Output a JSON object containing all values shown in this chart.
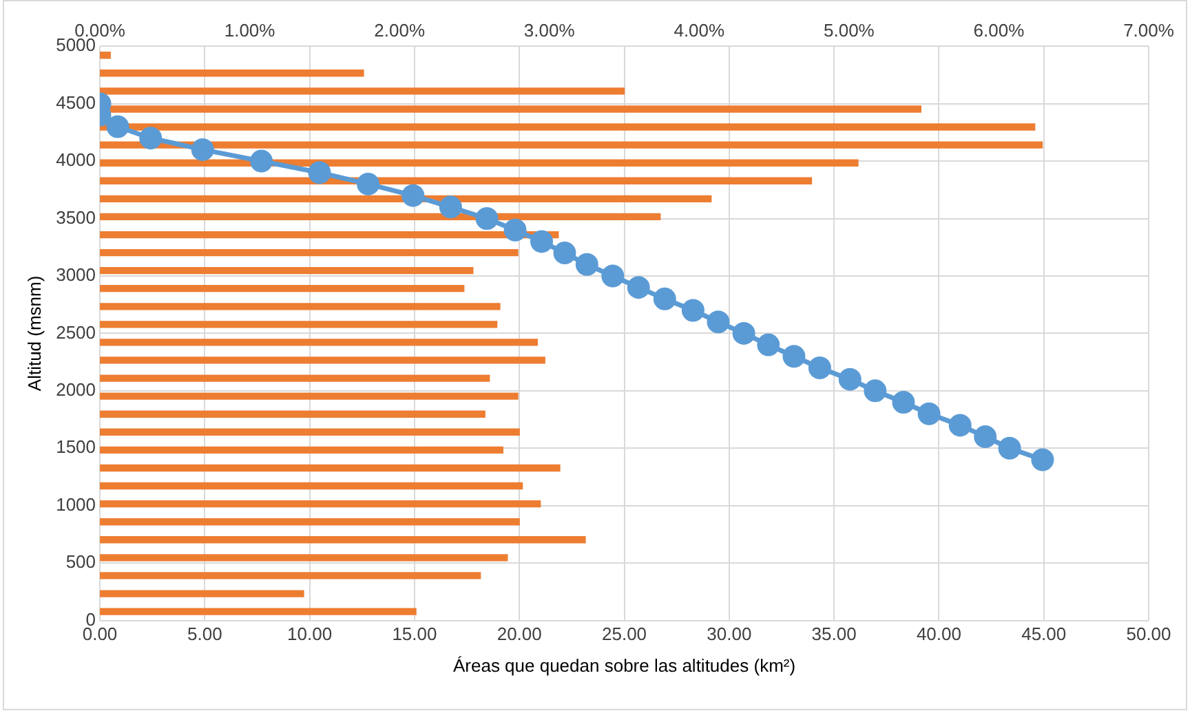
{
  "chart_data": {
    "type": "bar",
    "orientation": "horizontal",
    "xlabel": "Áreas que quedan sobre las altitudes (km²)",
    "ylabel": "Altitud (msnm)",
    "series": [
      {
        "axis": "x2",
        "color": "#ed7d31",
        "x": [
          4922,
          4766,
          4609,
          4453,
          4297,
          4141,
          3984,
          3828,
          3672,
          3516,
          3359,
          3203,
          3047,
          2891,
          2734,
          2578,
          2422,
          2266,
          2109,
          1953,
          1797,
          1641,
          1484,
          1328,
          1172,
          1016,
          859,
          703,
          547,
          391,
          234,
          78
        ],
        "values": [
          0.07,
          1.76,
          3.5,
          5.48,
          6.24,
          6.29,
          5.06,
          4.75,
          4.08,
          3.74,
          3.06,
          2.79,
          2.49,
          2.43,
          2.67,
          2.65,
          2.92,
          2.97,
          2.6,
          2.79,
          2.57,
          2.8,
          2.69,
          3.07,
          2.82,
          2.94,
          2.8,
          3.24,
          2.72,
          2.54,
          1.36,
          2.11
        ]
      },
      {
        "type": "line",
        "color": "#5b9bd5",
        "marker": "circle",
        "line_style": "solid",
        "x": [
          4500,
          4400,
          4300,
          4200,
          4100,
          4000,
          3900,
          3800,
          3700,
          3600,
          3500,
          3400,
          3300,
          3200,
          3100,
          3000,
          2900,
          2800,
          2700,
          2600,
          2500,
          2400,
          2300,
          2200,
          2100,
          2000,
          1900,
          1800,
          1700,
          1600,
          1500,
          1400
        ],
        "values": [
          0,
          0,
          0.85,
          2.42,
          4.9,
          7.7,
          10.47,
          12.79,
          14.93,
          16.72,
          18.45,
          19.8,
          21.06,
          22.16,
          23.22,
          24.45,
          25.68,
          26.93,
          28.28,
          29.48,
          30.7,
          31.87,
          33.09,
          34.32,
          35.76,
          36.96,
          38.31,
          39.53,
          41.01,
          42.21,
          43.37,
          44.94
        ]
      }
    ],
    "xlim": [
      0,
      50
    ],
    "xticks": [
      {
        "value": 0,
        "label": "0.00"
      },
      {
        "value": 5,
        "label": "5.00"
      },
      {
        "value": 10,
        "label": "10.00"
      },
      {
        "value": 15,
        "label": "15.00"
      },
      {
        "value": 20,
        "label": "20.00"
      },
      {
        "value": 25,
        "label": "25.00"
      },
      {
        "value": 30,
        "label": "30.00"
      },
      {
        "value": 35,
        "label": "35.00"
      },
      {
        "value": 40,
        "label": "40.00"
      },
      {
        "value": 45,
        "label": "45.00"
      },
      {
        "value": 50,
        "label": "50.00"
      }
    ],
    "x2lim": [
      0,
      7
    ],
    "x2ticks": [
      {
        "value": 0,
        "label": "0.00%"
      },
      {
        "value": 1,
        "label": "1.00%"
      },
      {
        "value": 2,
        "label": "2.00%"
      },
      {
        "value": 3,
        "label": "3.00%"
      },
      {
        "value": 4,
        "label": "4.00%"
      },
      {
        "value": 5,
        "label": "5.00%"
      },
      {
        "value": 6,
        "label": "6.00%"
      },
      {
        "value": 7,
        "label": "7.00%"
      }
    ],
    "ylim": [
      0,
      5000
    ],
    "yticks": [
      0,
      500,
      1000,
      1500,
      2000,
      2500,
      3000,
      3500,
      4000,
      4500,
      5000
    ],
    "grid": true
  }
}
